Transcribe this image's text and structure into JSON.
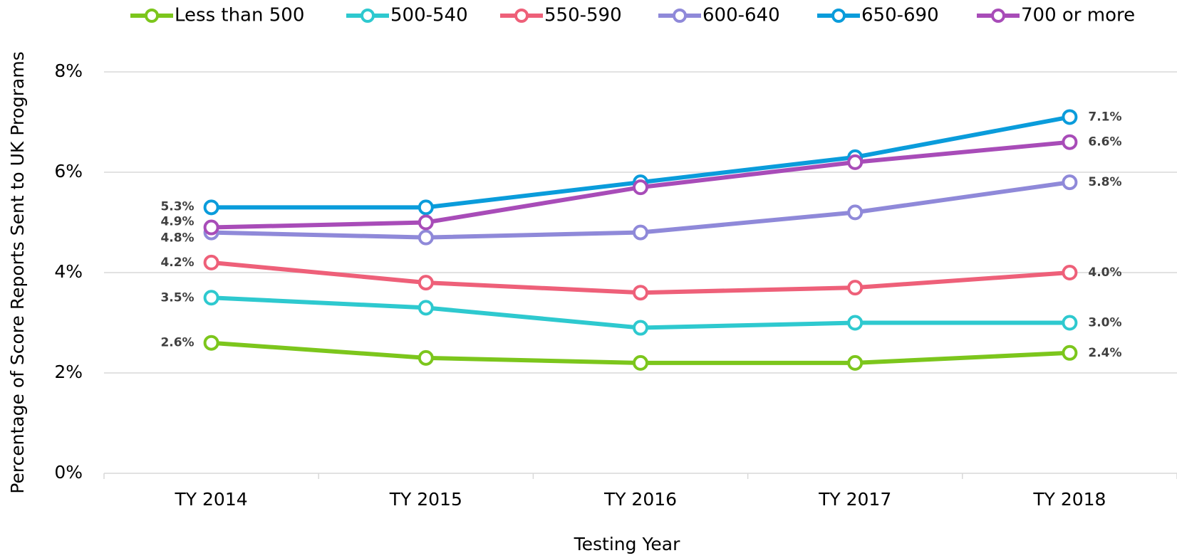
{
  "chart_data": {
    "type": "line",
    "x_label": "Testing Year",
    "y_label": "Percentage of Score Reports Sent to UK Programs",
    "categories": [
      "TY 2014",
      "TY 2015",
      "TY 2016",
      "TY 2017",
      "TY 2018"
    ],
    "ylim": [
      0,
      8
    ],
    "yticks": [
      {
        "value": 0,
        "label": "0%"
      },
      {
        "value": 2,
        "label": "2%"
      },
      {
        "value": 4,
        "label": "4%"
      },
      {
        "value": 6,
        "label": "6%"
      },
      {
        "value": 8,
        "label": "8%"
      }
    ],
    "grid": true,
    "legend": "top",
    "series": [
      {
        "name": "Less than 500",
        "color": "#7cc61c",
        "values": [
          2.6,
          2.3,
          2.2,
          2.2,
          2.4
        ],
        "value_labels": [
          "2.6%",
          null,
          null,
          null,
          "2.4%"
        ]
      },
      {
        "name": "500-540",
        "color": "#2ec9cf",
        "values": [
          3.5,
          3.3,
          2.9,
          3.0,
          3.0
        ],
        "value_labels": [
          "3.5%",
          null,
          null,
          null,
          "3.0%"
        ]
      },
      {
        "name": "550-590",
        "color": "#ee6079",
        "values": [
          4.2,
          3.8,
          3.6,
          3.7,
          4.0
        ],
        "value_labels": [
          "4.2%",
          null,
          null,
          null,
          "4.0%"
        ]
      },
      {
        "name": "600-640",
        "color": "#8f89d9",
        "values": [
          4.8,
          4.7,
          4.8,
          5.2,
          5.8
        ],
        "value_labels": [
          "4.8%",
          null,
          null,
          null,
          "5.8%"
        ]
      },
      {
        "name": "650-690",
        "color": "#0a9cdb",
        "values": [
          5.3,
          5.3,
          5.8,
          6.3,
          7.1
        ],
        "value_labels": [
          "5.3%",
          null,
          null,
          null,
          "7.1%"
        ]
      },
      {
        "name": "700 or more",
        "color": "#a84cb8",
        "values": [
          4.9,
          5.0,
          5.7,
          6.2,
          6.6
        ],
        "value_labels": [
          "4.9%",
          null,
          null,
          null,
          "6.6%"
        ]
      }
    ]
  }
}
